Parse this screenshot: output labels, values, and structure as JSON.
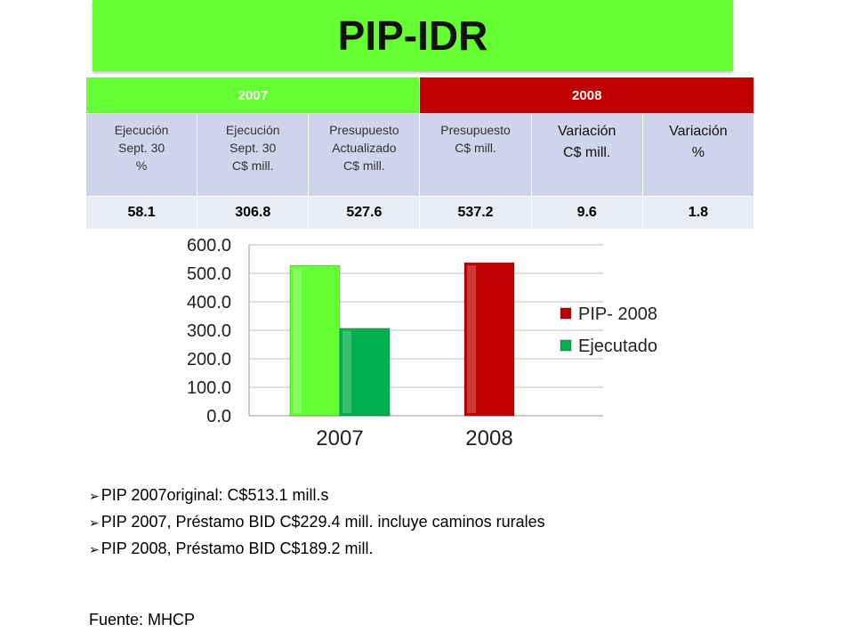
{
  "title": "PIP-IDR",
  "table": {
    "year_headers": [
      {
        "label": "2007"
      },
      {
        "label": "2008"
      }
    ],
    "columns": [
      {
        "header": "Ejecución\nSept. 30\n%",
        "value": "58.1"
      },
      {
        "header": "Ejecución\nSept. 30\nC$ mill.",
        "value": "306.8"
      },
      {
        "header": "Presupuesto\nActualizado\nC$ mill.",
        "value": "527.6"
      },
      {
        "header": "Presupuesto\nC$ mill.",
        "value": "537.2"
      },
      {
        "header": "Variación\nC$ mill.",
        "value": "9.6"
      },
      {
        "header": "Variación\n%",
        "value": "1.8"
      }
    ]
  },
  "colors": {
    "green_2007": "#66ff33",
    "red_2008": "#c00000",
    "ejecutado": "#00b050",
    "header_bg": "#cfd5ea",
    "value_bg": "#e9ebf5"
  },
  "chart_data": {
    "type": "bar",
    "categories": [
      "2007",
      "2008"
    ],
    "y_ticks": [
      "0.0",
      "100.0",
      "200.0",
      "300.0",
      "400.0",
      "500.0",
      "600.0"
    ],
    "ylim": [
      0,
      600
    ],
    "bars": [
      {
        "category": "2007",
        "value": 527.6,
        "color": "#66ff33"
      },
      {
        "category": "2007",
        "value": 306.8,
        "color": "#00b050"
      },
      {
        "category": "2008",
        "value": 537.2,
        "color": "#c00000"
      }
    ],
    "legend": [
      {
        "name": "PIP- 2008",
        "color": "#c00000"
      },
      {
        "name": "Ejecutado",
        "color": "#00b050"
      }
    ],
    "legend_position": "right",
    "grid": true
  },
  "notes": [
    "PIP 2007original: C$513.1 mill.s",
    "PIP 2007, Préstamo BID C$229.4 mill. incluye caminos rurales",
    "PIP 2008, Préstamo BID C$189.2 mill."
  ],
  "source": "Fuente: MHCP"
}
